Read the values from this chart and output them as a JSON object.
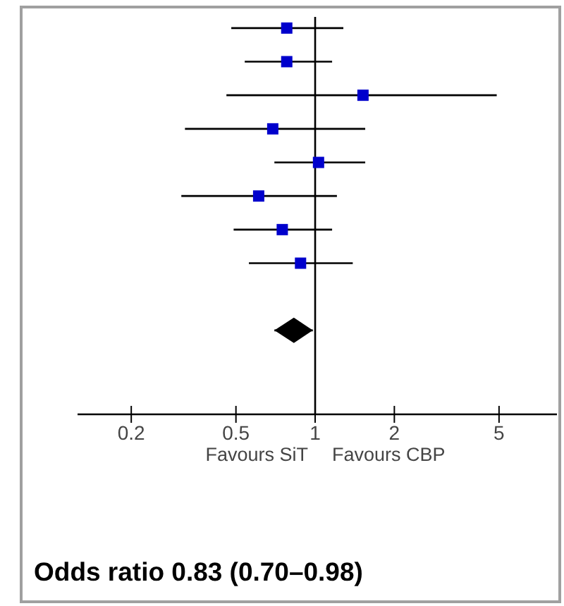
{
  "chart_data": {
    "type": "scatter",
    "orientation": "horizontal",
    "title": "Odds ratio 0.83 (0.70–0.98)",
    "categories": [
      null,
      null,
      null,
      null,
      null,
      null,
      null,
      null,
      null,
      null,
      null,
      null
    ],
    "series": [
      {
        "marker": "square",
        "color": "#0000cc",
        "values": [
          0.78,
          0.78,
          1.52,
          0.69,
          1.03,
          0.61,
          0.75,
          0.88,
          null,
          null,
          null,
          null
        ],
        "errors": [
          [
            0.48,
            1.28
          ],
          [
            0.54,
            1.16
          ],
          [
            0.46,
            4.9
          ],
          [
            0.32,
            1.55
          ],
          [
            0.7,
            1.55
          ],
          [
            0.31,
            1.21
          ],
          [
            0.49,
            1.16
          ],
          [
            0.56,
            1.39
          ],
          null,
          null,
          null,
          null
        ]
      },
      {
        "marker": "diamond",
        "color": "#000000",
        "values": [
          null,
          null,
          null,
          null,
          null,
          null,
          null,
          null,
          null,
          0.83,
          null,
          null
        ],
        "errors": [
          null,
          null,
          null,
          null,
          null,
          null,
          null,
          null,
          null,
          [
            0.7,
            0.98
          ],
          null,
          null
        ]
      }
    ],
    "log": "x",
    "xlim": [
      0.125,
      8.3
    ],
    "xticks": [
      0.2,
      0.5,
      1,
      2,
      5
    ],
    "ref_lines": [
      {
        "axis": "x",
        "value": 1,
        "color": "#000000"
      }
    ],
    "annotations": [
      "Favours SiT",
      "Favours CBP"
    ],
    "tick_labels": "x",
    "grid": false
  }
}
